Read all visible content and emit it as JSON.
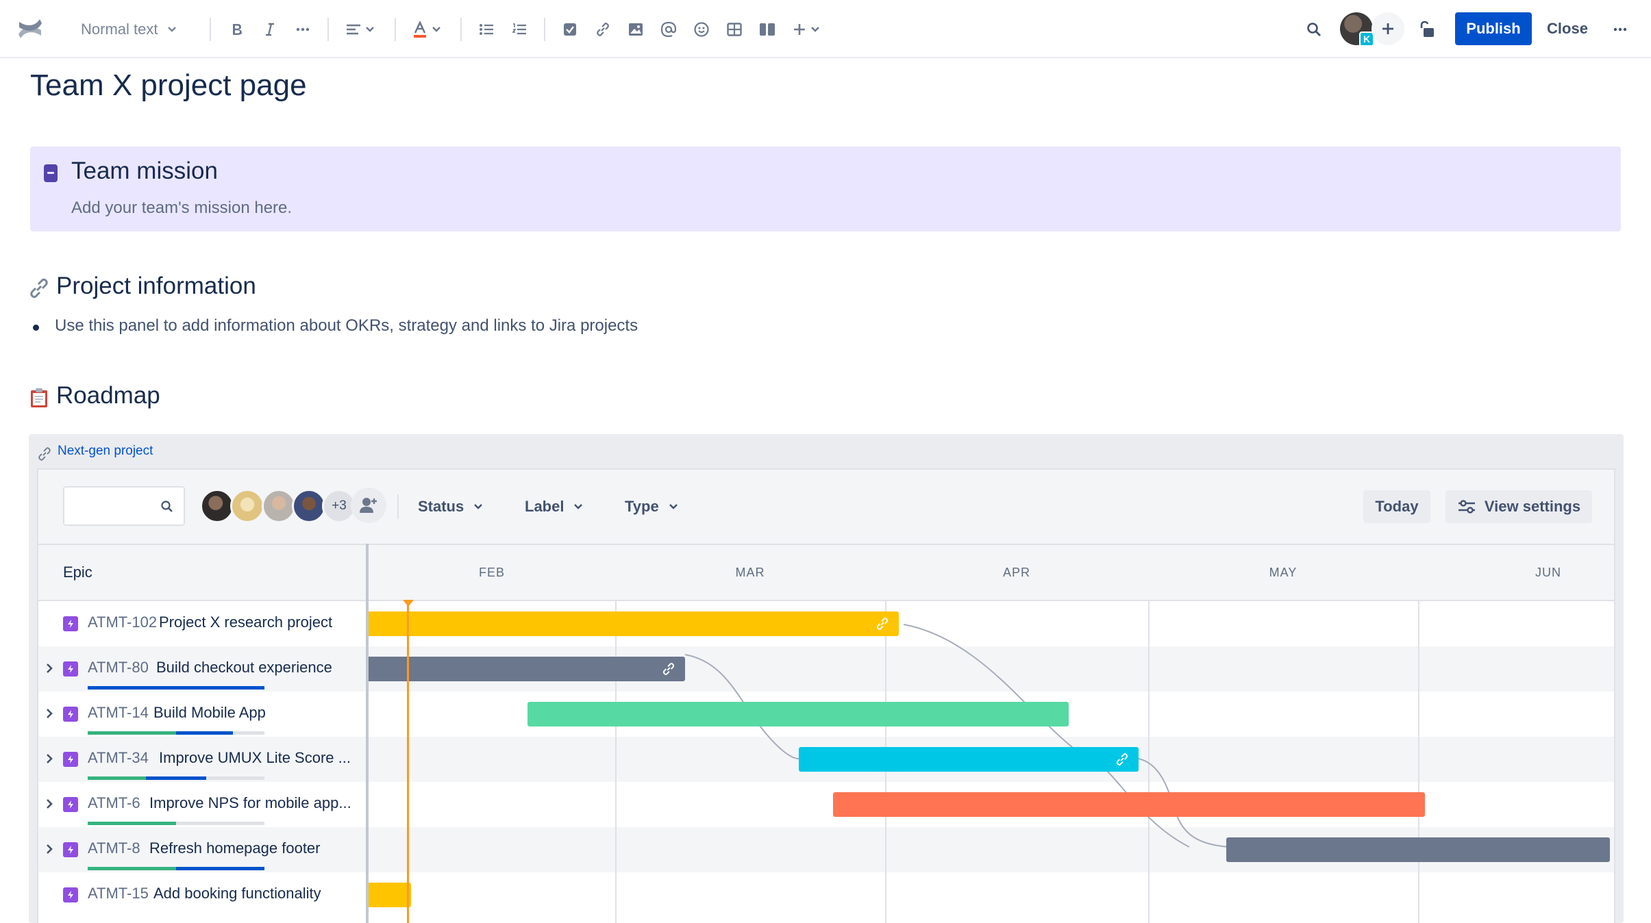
{
  "toolbar": {
    "text_style": "Normal text",
    "publish_label": "Publish",
    "close_label": "Close",
    "avatar_badge": "K"
  },
  "page": {
    "title": "Team X project page"
  },
  "mission_panel": {
    "title": "Team mission",
    "text": "Add your team's mission here."
  },
  "project_info": {
    "heading": "Project information",
    "bullet": "Use this panel to add information about OKRs, strategy and links to Jira projects"
  },
  "roadmap_section": {
    "heading": "Roadmap",
    "macro_link": "Next-gen project"
  },
  "roadmap": {
    "avatars_more": "+3",
    "filters": [
      "Status",
      "Label",
      "Type"
    ],
    "today_label": "Today",
    "view_settings_label": "View settings",
    "epic_header": "Epic",
    "months": [
      "FEB",
      "MAR",
      "APR",
      "MAY",
      "JUN"
    ],
    "epics": [
      {
        "key": "ATMT-102",
        "summary": "Project X research project",
        "expandable": false,
        "progress": null,
        "bar_color": "#FFC400"
      },
      {
        "key": "ATMT-80",
        "summary": "Build checkout experience",
        "expandable": true,
        "progress": [
          0,
          1.0
        ],
        "bar_color": "#6B778C"
      },
      {
        "key": "ATMT-14",
        "summary": "Build Mobile App",
        "expandable": true,
        "progress": [
          0.5,
          0.32
        ],
        "bar_color": "#57D9A3"
      },
      {
        "key": "ATMT-34",
        "summary": "Improve UMUX Lite Score ...",
        "expandable": true,
        "progress": [
          0.33,
          0.34
        ],
        "bar_color": "#00C7E6"
      },
      {
        "key": "ATMT-6",
        "summary": "Improve NPS for mobile app...",
        "expandable": true,
        "progress": [
          0.5,
          0.0
        ],
        "bar_color": "#FF7452"
      },
      {
        "key": "ATMT-8",
        "summary": "Refresh homepage footer",
        "expandable": true,
        "progress": [
          0.5,
          0.5
        ],
        "bar_color": "#6B778C"
      },
      {
        "key": "ATMT-15",
        "summary": "Add booking functionality",
        "expandable": false,
        "progress": null,
        "bar_color": "#FFC400"
      }
    ]
  },
  "colors": {
    "primary": "#0052CC",
    "epic_purple": "#904EE2",
    "panel_purple": "#EAE6FF",
    "today_orange": "#FF991F",
    "progress_done": "#36B37E",
    "progress_in_progress": "#0052CC"
  }
}
